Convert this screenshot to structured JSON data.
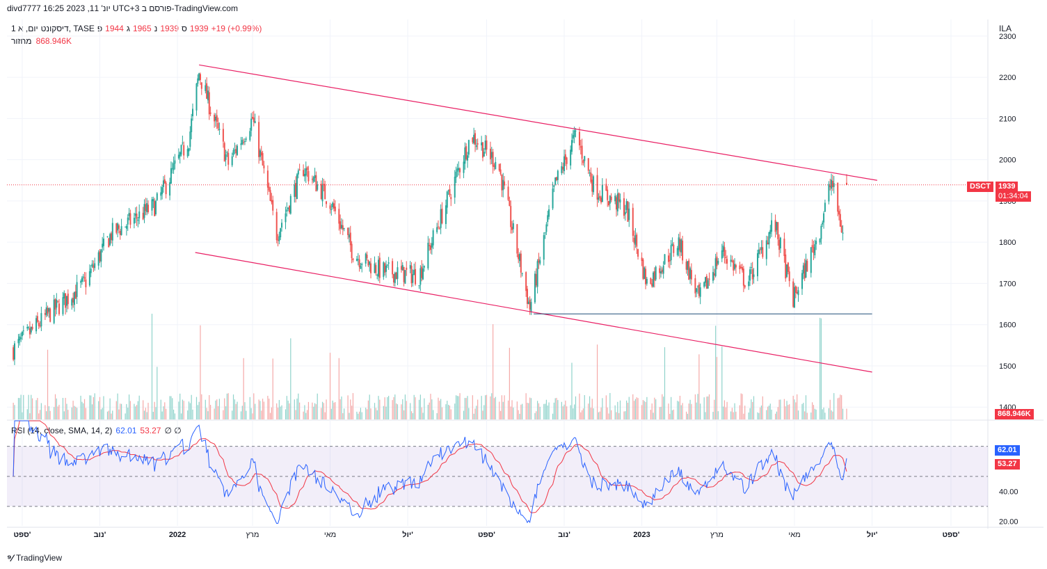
{
  "header": {
    "attribution": "divd7777 יונ' 11, 2023 16:25 UTC+3 פורסם ב-TradingView.com"
  },
  "legend": {
    "symbol": "דיסקונט, TASE",
    "interval": "1 יום, א",
    "open_label": "פ",
    "open": "1944",
    "high_label": "ג",
    "high": "1965",
    "low_label": "נ",
    "low": "1939",
    "close_label": "ס",
    "close": "1939",
    "change": "+19 (+0.99%)"
  },
  "volume_legend": {
    "label": "מחזור",
    "value": "868.946K"
  },
  "rsi_legend": {
    "label": "RSI (14, close, SMA, 14, 2)",
    "rsi": "62.01",
    "sma": "53.27",
    "extra": "∅ ∅"
  },
  "currency": "ILA",
  "tags": {
    "symbol": "DSCT",
    "price": "1939",
    "countdown": "01:34:04",
    "volume": "868.946K",
    "rsi": "62.01",
    "rsi_sma": "53.27"
  },
  "brand": "TradingView",
  "colors": {
    "up": "#26a69a",
    "down": "#ef5350",
    "trendline": "#e91e63",
    "support": "#1f4e79",
    "rsi": "#2962ff",
    "rsi_sma": "#f23645",
    "rsi_band": "#7e57c2"
  },
  "chart_data": [
    {
      "type": "candlestick",
      "name": "DSCT",
      "x_labels": [
        "ספט'",
        "נוב'",
        "2022",
        "מרץ",
        "מאי",
        "יול'",
        "ספט'",
        "נוב'",
        "2023",
        "מרץ",
        "מאי",
        "יול'",
        "ספט'"
      ],
      "y_ticks": [
        1400,
        1500,
        1600,
        1700,
        1800,
        1900,
        2000,
        2100,
        2200,
        2300
      ],
      "ylim": [
        1370,
        2320
      ],
      "last_price": 1939,
      "key_points": [
        {
          "date": "2021-08-25",
          "close": 1540
        },
        {
          "date": "2021-09-20",
          "close": 1620
        },
        {
          "date": "2021-10-20",
          "close": 1700
        },
        {
          "date": "2021-11-10",
          "close": 1820
        },
        {
          "date": "2021-12-15",
          "close": 1890
        },
        {
          "date": "2022-01-10",
          "close": 2050
        },
        {
          "date": "2022-01-18",
          "close": 2210
        },
        {
          "date": "2022-02-10",
          "close": 1990
        },
        {
          "date": "2022-03-01",
          "close": 2100
        },
        {
          "date": "2022-03-20",
          "close": 1820
        },
        {
          "date": "2022-04-10",
          "close": 1980
        },
        {
          "date": "2022-05-01",
          "close": 1900
        },
        {
          "date": "2022-05-20",
          "close": 1770
        },
        {
          "date": "2022-06-10",
          "close": 1730
        },
        {
          "date": "2022-07-10",
          "close": 1720
        },
        {
          "date": "2022-08-01",
          "close": 1900
        },
        {
          "date": "2022-08-20",
          "close": 2060
        },
        {
          "date": "2022-09-10",
          "close": 1990
        },
        {
          "date": "2022-10-05",
          "close": 1640
        },
        {
          "date": "2022-10-25",
          "close": 1940
        },
        {
          "date": "2022-11-10",
          "close": 2060
        },
        {
          "date": "2022-11-25",
          "close": 1930
        },
        {
          "date": "2022-12-20",
          "close": 1880
        },
        {
          "date": "2023-01-05",
          "close": 1700
        },
        {
          "date": "2023-01-30",
          "close": 1800
        },
        {
          "date": "2023-02-15",
          "close": 1660
        },
        {
          "date": "2023-03-05",
          "close": 1780
        },
        {
          "date": "2023-03-25",
          "close": 1700
        },
        {
          "date": "2023-04-15",
          "close": 1850
        },
        {
          "date": "2023-04-30",
          "close": 1660
        },
        {
          "date": "2023-05-20",
          "close": 1820
        },
        {
          "date": "2023-05-30",
          "close": 1950
        },
        {
          "date": "2023-06-10",
          "close": 1790
        },
        {
          "date": "2023-06-11",
          "close": 1939
        }
      ],
      "annotations": [
        {
          "type": "trendline",
          "from": {
            "date": "2022-01-18",
            "price": 2230
          },
          "to": {
            "date": "2023-07-05",
            "price": 1950
          }
        },
        {
          "type": "trendline",
          "from": {
            "date": "2022-01-15",
            "price": 1775
          },
          "to": {
            "date": "2023-07-01",
            "price": 1485
          }
        },
        {
          "type": "horizontal",
          "price": 1626,
          "from": "2022-10-08",
          "to": "2023-07-01"
        },
        {
          "type": "price_line",
          "price": 1939
        }
      ]
    },
    {
      "type": "bar",
      "name": "מחזור",
      "last_value": "868.946K"
    },
    {
      "type": "line",
      "name": "RSI",
      "y_ticks": [
        20,
        40
      ],
      "ylim": [
        17,
        87
      ],
      "bands": [
        30,
        50,
        70
      ],
      "last_rsi": 62.01,
      "last_sma": 53.27
    }
  ]
}
